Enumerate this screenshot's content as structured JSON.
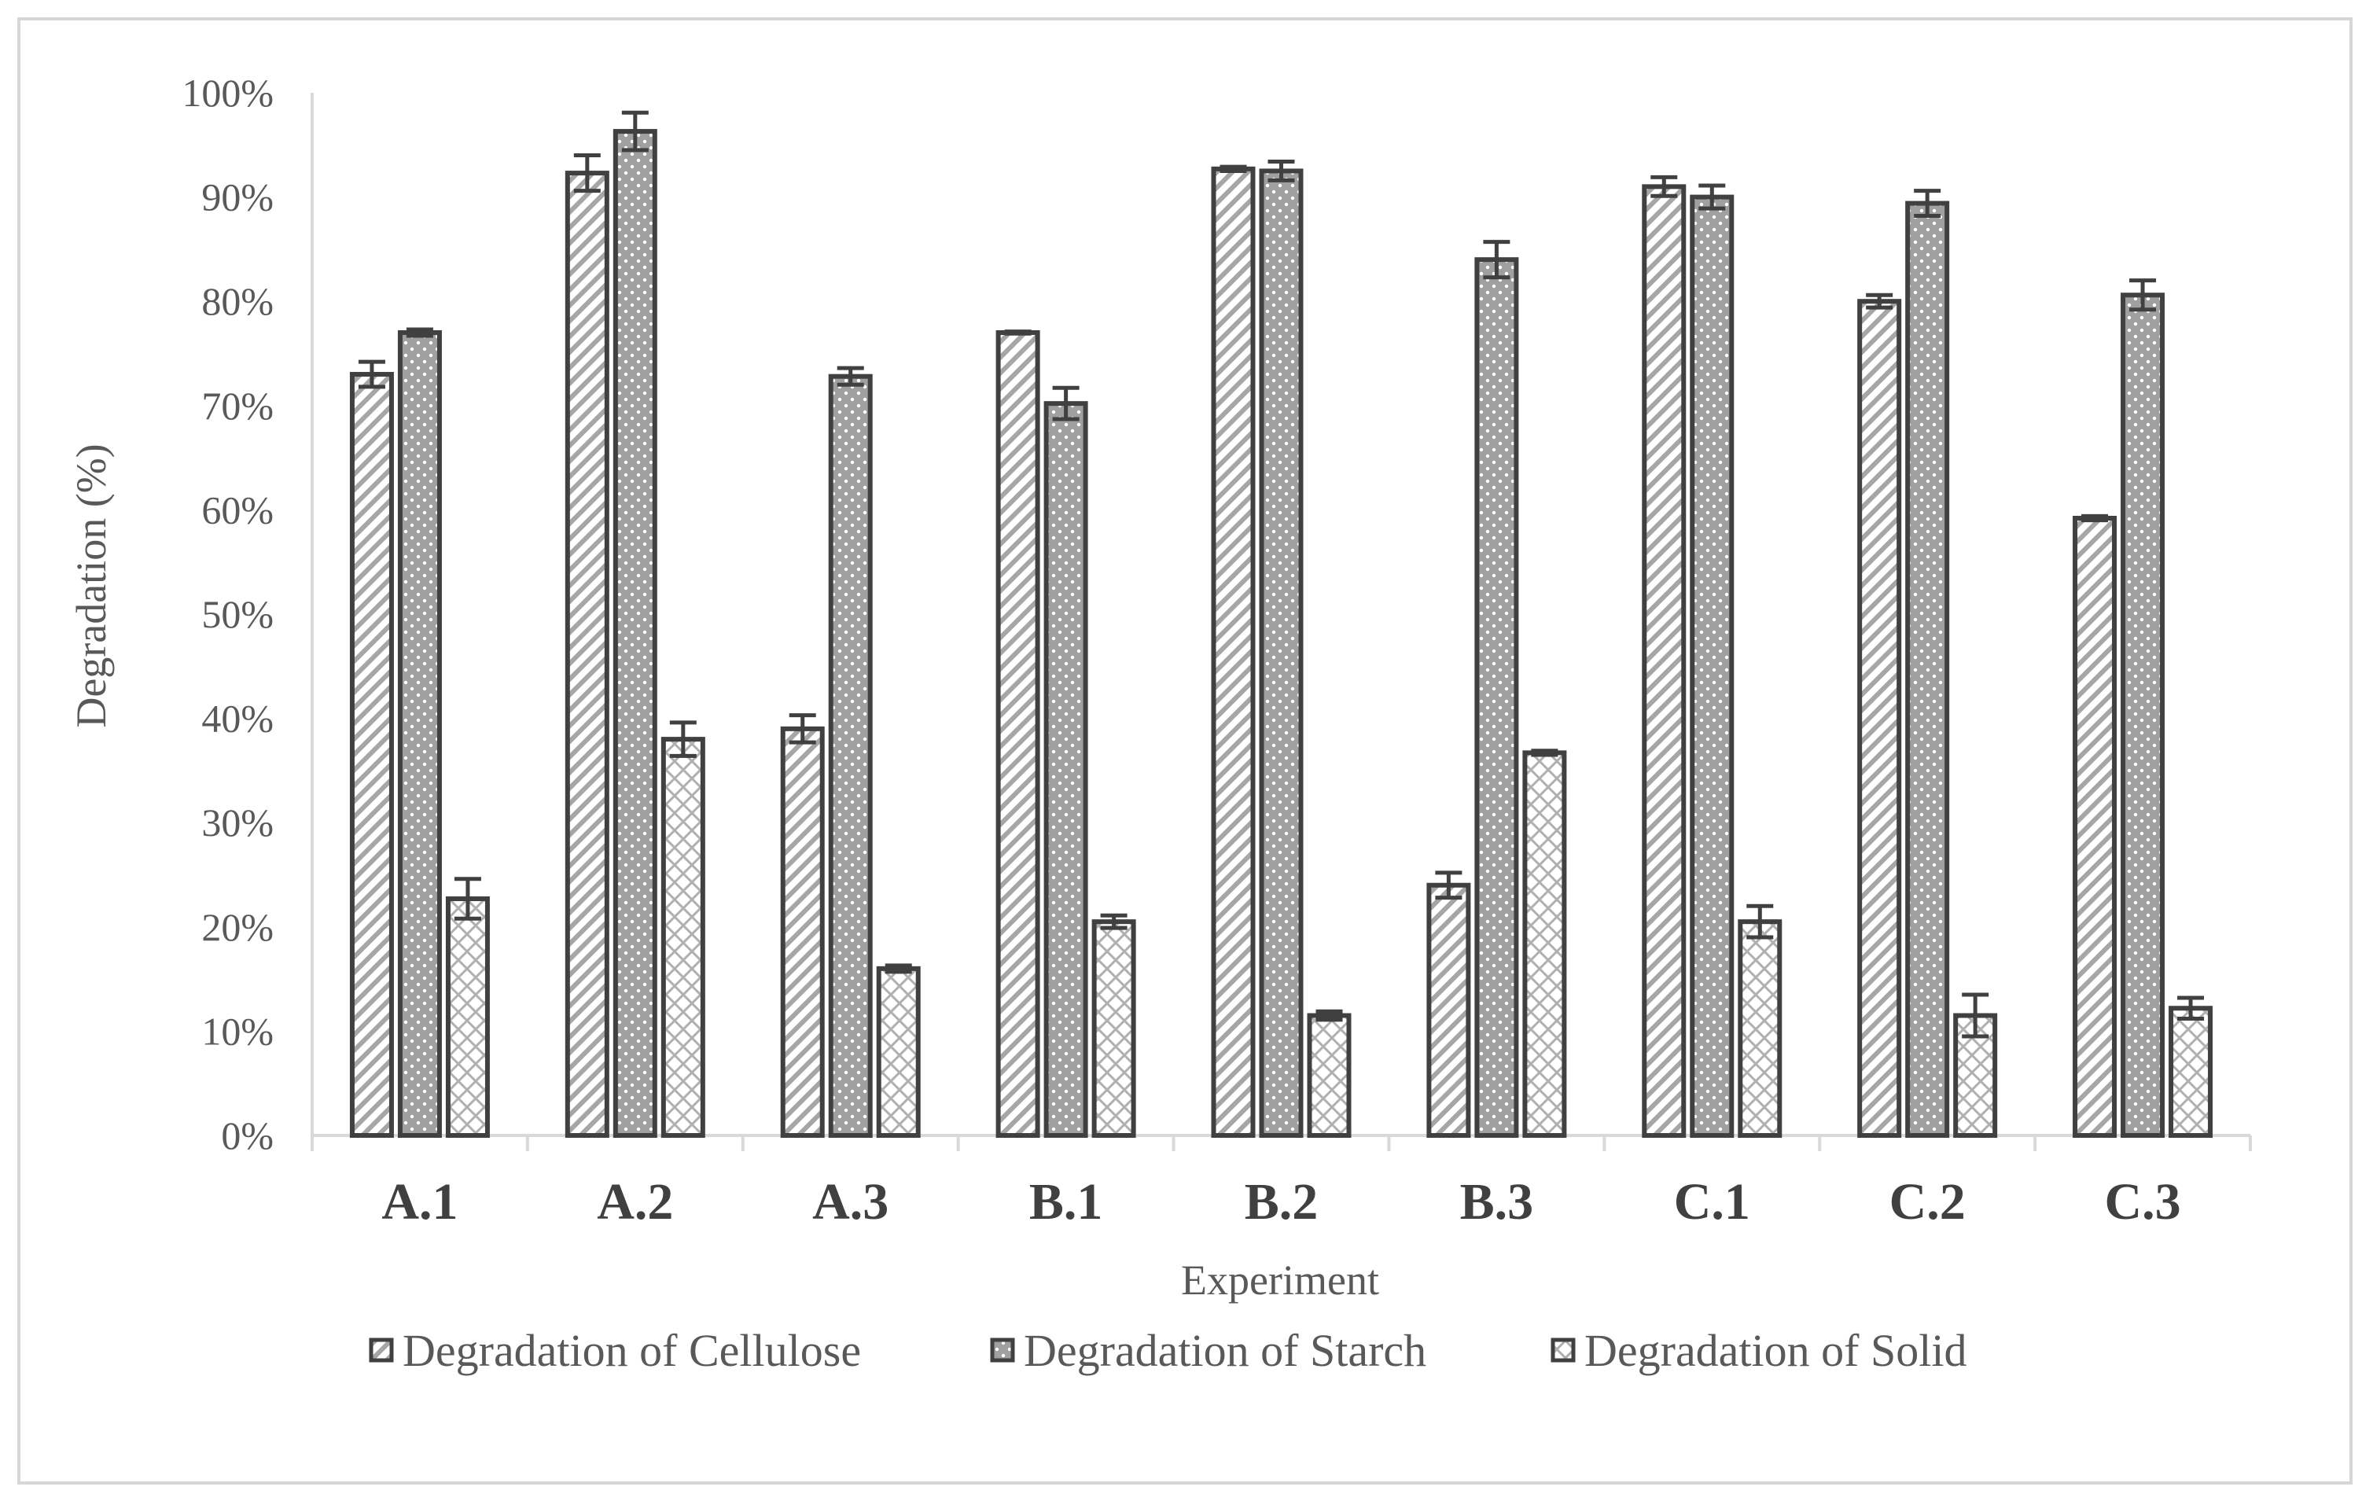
{
  "chart_data": {
    "type": "bar",
    "title": "",
    "xlabel": "Experiment",
    "ylabel": "Degradation (%)",
    "ylim": [
      0,
      100
    ],
    "yticks": [
      "0%",
      "10%",
      "20%",
      "30%",
      "40%",
      "50%",
      "60%",
      "70%",
      "80%",
      "90%",
      "100%"
    ],
    "grid": false,
    "legend_position": "bottom",
    "categories": [
      "A.1",
      "A.2",
      "A.3",
      "B.1",
      "B.2",
      "B.3",
      "C.1",
      "C.2",
      "C.3"
    ],
    "series": [
      {
        "name": "Degradation of Cellulose",
        "pattern": "diagonal-stripes",
        "values": [
          73,
          92.3,
          39,
          77,
          92.7,
          24,
          91,
          80,
          59.2
        ],
        "errors": [
          1.2,
          1.7,
          1.3,
          0.1,
          0.2,
          1.2,
          0.9,
          0.6,
          0.2
        ]
      },
      {
        "name": "Degradation of Starch",
        "pattern": "dotted-gray",
        "values": [
          77,
          96.3,
          72.8,
          70.2,
          92.5,
          84,
          90,
          89.4,
          80.6
        ],
        "errors": [
          0.3,
          1.8,
          0.8,
          1.5,
          0.9,
          1.7,
          1.1,
          1.2,
          1.4
        ]
      },
      {
        "name": "Degradation of Solid",
        "pattern": "crosshatch",
        "values": [
          22.7,
          38,
          16,
          20.5,
          11.5,
          36.7,
          20.5,
          11.5,
          12.2
        ],
        "errors": [
          1.9,
          1.6,
          0.3,
          0.6,
          0.4,
          0.2,
          1.5,
          2.0,
          1.0
        ]
      }
    ]
  }
}
